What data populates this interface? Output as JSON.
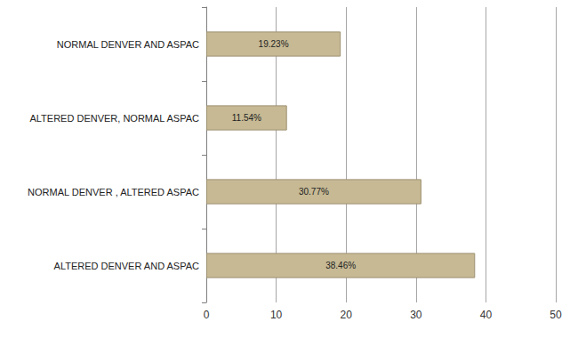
{
  "chart_data": {
    "type": "bar",
    "orientation": "horizontal",
    "categories": [
      "NORMAL DENVER AND ASPAC",
      "ALTERED DENVER, NORMAL ASPAC",
      "NORMAL DENVER , ALTERED ASPAC",
      "ALTERED DENVER AND ASPAC"
    ],
    "values": [
      19.23,
      11.54,
      30.77,
      38.46
    ],
    "value_labels": [
      "19.23%",
      "11.54%",
      "30.77%",
      "38.46%"
    ],
    "data_labels": true,
    "color": "#c6b994",
    "xlim": [
      0,
      50
    ],
    "xticks": [
      0,
      10,
      20,
      30,
      40,
      50
    ],
    "grid": true
  }
}
